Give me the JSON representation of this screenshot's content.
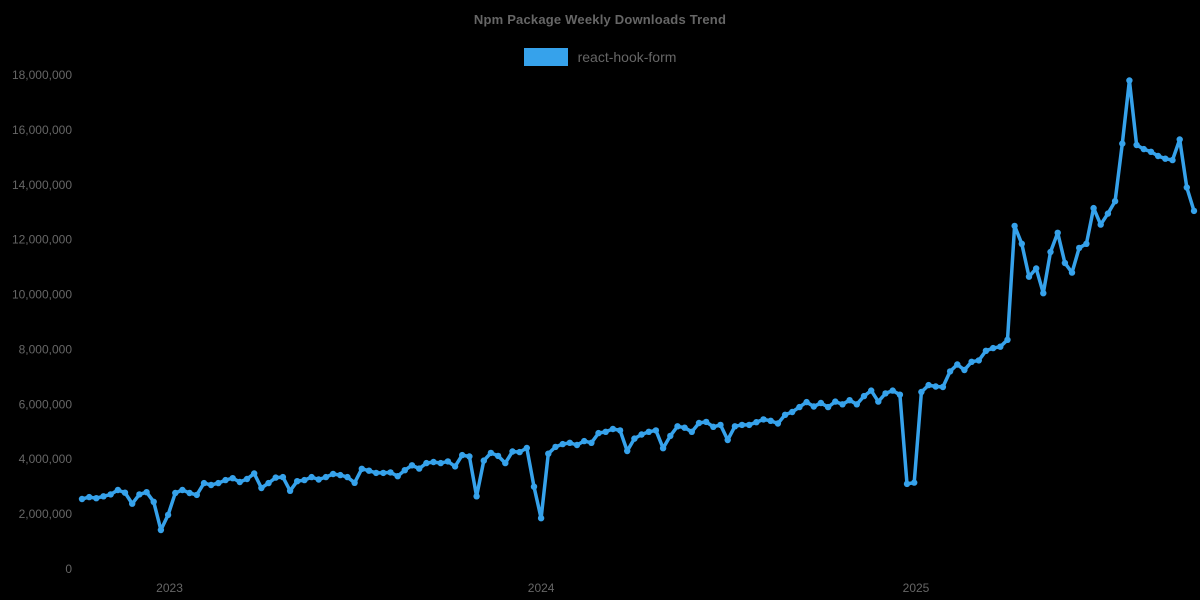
{
  "chart_data": {
    "type": "line",
    "title": "Npm Package Weekly Downloads Trend",
    "xlabel": "",
    "ylabel": "",
    "x_unit": "week",
    "grid": false,
    "legend_position": "top",
    "marker": "circle",
    "background": "#000000",
    "text_color": "#666666",
    "ylim": [
      0,
      18000000
    ],
    "y_ticks": [
      {
        "label": "0",
        "value": 0
      },
      {
        "label": "2,000,000",
        "value": 2000000
      },
      {
        "label": "4,000,000",
        "value": 4000000
      },
      {
        "label": "6,000,000",
        "value": 6000000
      },
      {
        "label": "8,000,000",
        "value": 8000000
      },
      {
        "label": "10,000,000",
        "value": 10000000
      },
      {
        "label": "12,000,000",
        "value": 12000000
      },
      {
        "label": "14,000,000",
        "value": 14000000
      },
      {
        "label": "16,000,000",
        "value": 16000000
      },
      {
        "label": "18,000,000",
        "value": 18000000
      }
    ],
    "x_ticks": [
      {
        "label": "2023",
        "week_index": 12.2
      },
      {
        "label": "2024",
        "week_index": 64.0
      },
      {
        "label": "2025",
        "week_index": 116.25
      }
    ],
    "series": [
      {
        "name": "react-hook-form",
        "color": "#36a2eb",
        "values": [
          2550000,
          2620000,
          2580000,
          2650000,
          2720000,
          2880000,
          2780000,
          2380000,
          2720000,
          2800000,
          2450000,
          1420000,
          1970000,
          2770000,
          2880000,
          2770000,
          2700000,
          3130000,
          3060000,
          3130000,
          3240000,
          3310000,
          3170000,
          3280000,
          3480000,
          2950000,
          3130000,
          3330000,
          3350000,
          2850000,
          3200000,
          3240000,
          3350000,
          3260000,
          3350000,
          3460000,
          3420000,
          3350000,
          3140000,
          3650000,
          3580000,
          3500000,
          3500000,
          3520000,
          3380000,
          3600000,
          3780000,
          3660000,
          3860000,
          3900000,
          3860000,
          3920000,
          3740000,
          4150000,
          4100000,
          2650000,
          3950000,
          4230000,
          4120000,
          3860000,
          4280000,
          4260000,
          4410000,
          3000000,
          1850000,
          4200000,
          4450000,
          4550000,
          4600000,
          4520000,
          4660000,
          4600000,
          4950000,
          5000000,
          5100000,
          5050000,
          4300000,
          4750000,
          4900000,
          5000000,
          5050000,
          4400000,
          4850000,
          5200000,
          5150000,
          5000000,
          5320000,
          5360000,
          5180000,
          5250000,
          4700000,
          5200000,
          5250000,
          5250000,
          5350000,
          5450000,
          5400000,
          5300000,
          5620000,
          5720000,
          5900000,
          6080000,
          5920000,
          6050000,
          5900000,
          6100000,
          6000000,
          6150000,
          6000000,
          6300000,
          6500000,
          6100000,
          6400000,
          6500000,
          6350000,
          3100000,
          3150000,
          6450000,
          6700000,
          6650000,
          6630000,
          7200000,
          7450000,
          7250000,
          7550000,
          7600000,
          7950000,
          8050000,
          8100000,
          8350000,
          12500000,
          11850000,
          10650000,
          10950000,
          10050000,
          11550000,
          12250000,
          11150000,
          10800000,
          11700000,
          11850000,
          13150000,
          12550000,
          12950000,
          13400000,
          15500000,
          17800000,
          15450000,
          15300000,
          15200000,
          15050000,
          14950000,
          14900000,
          15650000,
          13900000,
          13050000
        ]
      }
    ]
  }
}
